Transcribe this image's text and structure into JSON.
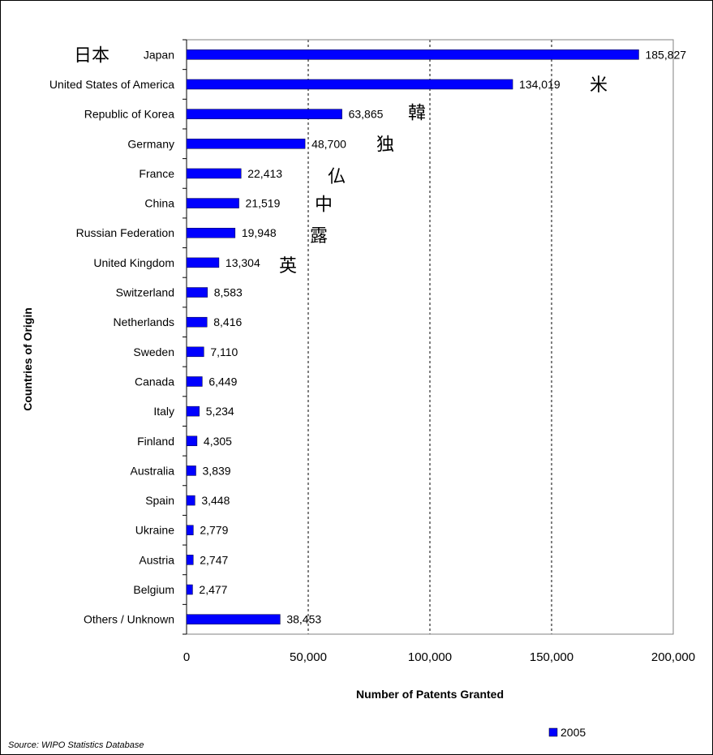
{
  "chart_data": {
    "type": "bar",
    "orientation": "horizontal",
    "categories": [
      "Japan",
      "United States of America",
      "Republic of Korea",
      "Germany",
      "France",
      "China",
      "Russian Federation",
      "United Kingdom",
      "Switzerland",
      "Netherlands",
      "Sweden",
      "Canada",
      "Italy",
      "Finland",
      "Australia",
      "Spain",
      "Ukraine",
      "Austria",
      "Belgium",
      "Others / Unknown"
    ],
    "series": [
      {
        "name": "2005",
        "values": [
          185827,
          134019,
          63865,
          48700,
          22413,
          21519,
          19948,
          13304,
          8583,
          8416,
          7110,
          6449,
          5234,
          4305,
          3839,
          3448,
          2779,
          2747,
          2477,
          38453
        ]
      }
    ],
    "value_labels": [
      "185,827",
      "134,019",
      "63,865",
      "48,700",
      "22,413",
      "21,519",
      "19,948",
      "13,304",
      "8,583",
      "8,416",
      "7,110",
      "6,449",
      "5,234",
      "4,305",
      "3,839",
      "3,448",
      "2,779",
      "2,747",
      "2,477",
      "38,453"
    ],
    "xlabel": "Number of Patents Granted",
    "ylabel": "Countries of Origin",
    "xlim": [
      0,
      200000
    ],
    "xticks": [
      0,
      50000,
      100000,
      150000,
      200000
    ],
    "xtick_labels": [
      "0",
      "50,000",
      "100,000",
      "150,000",
      "200,000"
    ],
    "grid": "vertical dashed lines at 50,000, 100,000, 150,000",
    "legend": {
      "position": "bottom-right",
      "entries": [
        "2005"
      ]
    },
    "bar_color": "#0000ff",
    "annotations": [
      {
        "text": "日本",
        "category": "Japan",
        "color": "#ee0000"
      },
      {
        "text": "米",
        "category": "United States of America",
        "color": "#000000"
      },
      {
        "text": "韓",
        "category": "Republic of Korea",
        "color": "#000000"
      },
      {
        "text": "独",
        "category": "Germany",
        "color": "#000000"
      },
      {
        "text": "仏",
        "category": "France",
        "color": "#000000"
      },
      {
        "text": "中",
        "category": "China",
        "color": "#000000"
      },
      {
        "text": "露",
        "category": "Russian Federation",
        "color": "#000000"
      },
      {
        "text": "英",
        "category": "United Kingdom",
        "color": "#000000"
      }
    ]
  },
  "source_note": "Source: WIPO Statistics Database"
}
